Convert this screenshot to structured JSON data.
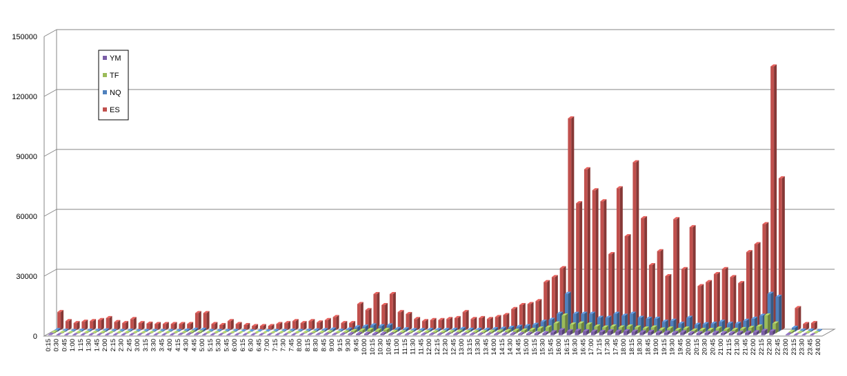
{
  "chart_data": {
    "type": "bar",
    "title": "",
    "xlabel": "",
    "ylabel": "",
    "ylim": [
      0,
      150000
    ],
    "yticks": [
      0,
      30000,
      60000,
      90000,
      120000,
      150000
    ],
    "grid": true,
    "legend_position": "top-left",
    "categories": [
      "0:15",
      "0:30",
      "0:45",
      "1:00",
      "1:15",
      "1:30",
      "1:45",
      "2:00",
      "2:15",
      "2:30",
      "2:45",
      "3:00",
      "3:15",
      "3:30",
      "3:45",
      "4:00",
      "4:15",
      "4:30",
      "4:45",
      "5:00",
      "5:15",
      "5:30",
      "5:45",
      "6:00",
      "6:15",
      "6:30",
      "6:45",
      "7:00",
      "7:15",
      "7:30",
      "7:45",
      "8:00",
      "8:15",
      "8:30",
      "8:45",
      "9:00",
      "9:15",
      "9:30",
      "9:45",
      "10:00",
      "10:15",
      "10:30",
      "10:45",
      "11:00",
      "11:15",
      "11:30",
      "11:45",
      "12:00",
      "12:15",
      "12:30",
      "12:45",
      "13:00",
      "13:15",
      "13:30",
      "13:45",
      "14:00",
      "14:15",
      "14:30",
      "14:45",
      "15:00",
      "15:15",
      "15:30",
      "15:45",
      "16:00",
      "16:15",
      "16:30",
      "16:45",
      "17:00",
      "17:15",
      "17:30",
      "17:45",
      "18:00",
      "18:15",
      "18:30",
      "18:45",
      "19:00",
      "19:15",
      "19:30",
      "19:45",
      "20:00",
      "20:15",
      "20:30",
      "20:45",
      "21:00",
      "21:15",
      "21:30",
      "21:45",
      "22:00",
      "22:15",
      "22:30",
      "22:45",
      "23:00",
      "23:15",
      "23:30",
      "23:45",
      "24:00"
    ],
    "series": [
      {
        "name": "YM",
        "color": "#7B5EA7",
        "values": [
          200,
          100,
          100,
          100,
          100,
          100,
          100,
          100,
          100,
          100,
          100,
          100,
          100,
          100,
          100,
          100,
          200,
          300,
          300,
          100,
          100,
          100,
          100,
          100,
          100,
          100,
          100,
          100,
          100,
          100,
          100,
          100,
          200,
          200,
          300,
          200,
          300,
          500,
          600,
          700,
          600,
          700,
          400,
          300,
          300,
          300,
          300,
          300,
          300,
          300,
          400,
          300,
          300,
          300,
          300,
          400,
          400,
          500,
          500,
          700,
          800,
          900,
          1500,
          2500,
          2000,
          2200,
          2000,
          1800,
          1700,
          2000,
          1800,
          2000,
          1800,
          1500,
          1700,
          1300,
          1400,
          1100,
          1500,
          900,
          1000,
          1100,
          1200,
          1000,
          900,
          1200,
          1300,
          1500,
          2200,
          2000,
          0,
          300,
          100,
          100,
          100,
          0
        ]
      },
      {
        "name": "TF",
        "color": "#9BBB59",
        "values": [
          500,
          300,
          200,
          300,
          300,
          300,
          400,
          200,
          200,
          300,
          200,
          200,
          200,
          200,
          200,
          200,
          300,
          600,
          600,
          200,
          200,
          200,
          200,
          100,
          100,
          100,
          100,
          200,
          200,
          300,
          200,
          300,
          400,
          400,
          600,
          300,
          600,
          1200,
          1500,
          1800,
          1500,
          1800,
          800,
          700,
          500,
          500,
          600,
          600,
          600,
          700,
          900,
          700,
          700,
          700,
          900,
          1000,
          1200,
          1400,
          1500,
          1800,
          2500,
          3000,
          5000,
          9000,
          4500,
          5000,
          4500,
          3500,
          3000,
          3500,
          3000,
          3500,
          3000,
          2500,
          3000,
          2000,
          2500,
          1800,
          2500,
          1500,
          1800,
          1800,
          2500,
          2000,
          1800,
          2200,
          2800,
          3500,
          9000,
          5000,
          0,
          800,
          300,
          300,
          200,
          0
        ]
      },
      {
        "name": "NQ",
        "color": "#4F81BD",
        "values": [
          800,
          500,
          400,
          500,
          500,
          500,
          700,
          400,
          400,
          500,
          300,
          400,
          400,
          400,
          400,
          400,
          600,
          1000,
          1000,
          400,
          400,
          400,
          400,
          200,
          200,
          200,
          200,
          400,
          400,
          500,
          400,
          500,
          700,
          800,
          1100,
          500,
          1100,
          2200,
          2600,
          3200,
          2800,
          3200,
          1400,
          1200,
          800,
          800,
          900,
          900,
          900,
          1000,
          1400,
          1000,
          1000,
          1000,
          1300,
          1500,
          2000,
          2500,
          2800,
          3500,
          5000,
          6000,
          9000,
          19000,
          9000,
          9000,
          9000,
          7000,
          7000,
          9000,
          8000,
          9000,
          7000,
          6500,
          6500,
          5000,
          5500,
          4000,
          7000,
          3500,
          3800,
          4000,
          5000,
          4000,
          4000,
          5500,
          6500,
          8000,
          19000,
          17500,
          0,
          2000,
          600,
          600,
          400,
          0
        ]
      },
      {
        "name": "ES",
        "color": "#C0504D",
        "values": [
          9000,
          4500,
          3500,
          4200,
          4500,
          5000,
          6000,
          4000,
          3500,
          5500,
          3500,
          3200,
          3000,
          3000,
          3000,
          3000,
          3000,
          8500,
          8500,
          3000,
          2500,
          4500,
          3000,
          2500,
          2000,
          2000,
          2000,
          3000,
          3500,
          4500,
          3500,
          4500,
          3800,
          5000,
          6500,
          3500,
          3500,
          13000,
          10000,
          18000,
          12500,
          18000,
          9000,
          8000,
          5500,
          4500,
          5000,
          5000,
          5500,
          6000,
          9000,
          5500,
          6000,
          5500,
          6500,
          7500,
          10500,
          12500,
          13000,
          14500,
          24000,
          26500,
          31000,
          106000,
          63500,
          80500,
          70000,
          64500,
          38000,
          71000,
          47000,
          84000,
          56000,
          32500,
          39500,
          27000,
          55500,
          30500,
          51500,
          22000,
          24000,
          28000,
          30500,
          26500,
          23500,
          39000,
          43000,
          53000,
          132000,
          76000,
          0,
          11000,
          3000,
          3500,
          0,
          0
        ]
      }
    ]
  }
}
